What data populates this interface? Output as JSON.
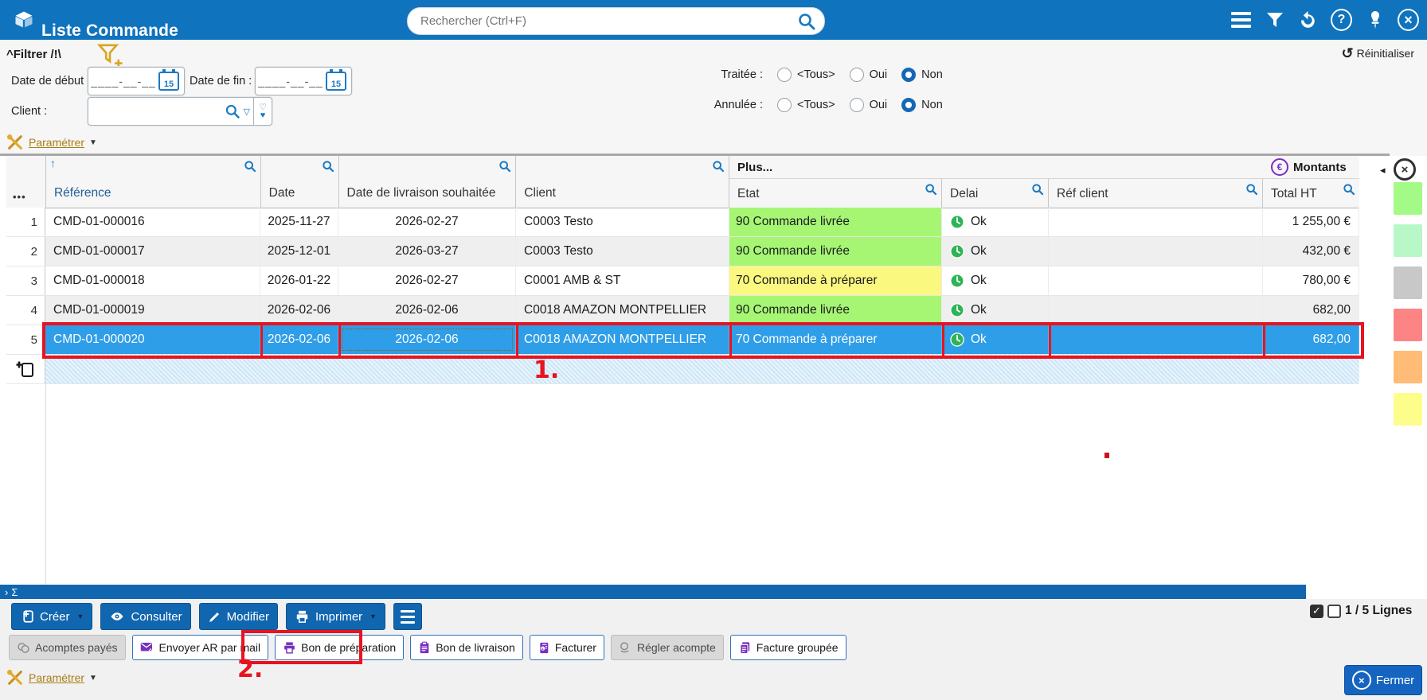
{
  "header": {
    "title": "Liste Commande",
    "search_placeholder": "Rechercher (Ctrl+F)"
  },
  "filter": {
    "collapse_icon": "^",
    "title": "Filtrer /!\\",
    "reset_label": "Réinitialiser",
    "date_start_label": "Date de début :",
    "date_end_label": "Date de fin :",
    "date_placeholder": "____-__-__",
    "calendar_day": "15",
    "client_label": "Client :",
    "traitee_label": "Traitée :",
    "annulee_label": "Annulée :",
    "radio_options": [
      "<Tous>",
      "Oui",
      "Non"
    ],
    "traitee_selected": "Non",
    "annulee_selected": "Non",
    "parametrer_label": "Paramétrer"
  },
  "table": {
    "groups": {
      "plus": "Plus...",
      "montants": "Montants"
    },
    "columns": {
      "reference": "Référence",
      "date": "Date",
      "date_livraison": "Date de livraison souhaitée",
      "client": "Client",
      "etat": "Etat",
      "delai": "Delai",
      "ref_client": "Réf client",
      "total_ht": "Total HT"
    },
    "rows": [
      {
        "num": "1",
        "reference": "CMD-01-000016",
        "date": "2025-11-27",
        "date_livraison": "2026-02-27",
        "client": "C0003 Testo",
        "etat": "90 Commande livrée",
        "etat_color": "#a6f674",
        "delai": "Ok",
        "ref_client": "",
        "total_ht": "1 255,00 €",
        "selected": false
      },
      {
        "num": "2",
        "reference": "CMD-01-000017",
        "date": "2025-12-01",
        "date_livraison": "2026-03-27",
        "client": "C0003 Testo",
        "etat": "90 Commande livrée",
        "etat_color": "#a6f674",
        "delai": "Ok",
        "ref_client": "",
        "total_ht": "432,00 €",
        "selected": false
      },
      {
        "num": "3",
        "reference": "CMD-01-000018",
        "date": "2026-01-22",
        "date_livraison": "2026-02-27",
        "client": "C0001 AMB & ST",
        "etat": "70 Commande à préparer",
        "etat_color": "#fbf880",
        "delai": "Ok",
        "ref_client": "",
        "total_ht": "780,00 €",
        "selected": false
      },
      {
        "num": "4",
        "reference": "CMD-01-000019",
        "date": "2026-02-06",
        "date_livraison": "2026-02-06",
        "client": "C0018 AMAZON MONTPELLIER",
        "etat": "90 Commande livrée",
        "etat_color": "#a6f674",
        "delai": "Ok",
        "ref_client": "",
        "total_ht": "682,00",
        "selected": false
      },
      {
        "num": "5",
        "reference": "CMD-01-000020",
        "date": "2026-02-06",
        "date_livraison": "2026-02-06",
        "client": "C0018 AMAZON MONTPELLIER",
        "etat": "70 Commande à préparer",
        "etat_color": "#fbf880",
        "delai": "Ok",
        "ref_client": "",
        "total_ht": "682,00",
        "selected": true
      }
    ]
  },
  "legend": {
    "colors": [
      "#a4fa86",
      "#b8f8c8",
      "#c8c8c8",
      "#fc8484",
      "#ffbc76",
      "#fdfd8b"
    ]
  },
  "sum_bar": {
    "chevron": "›",
    "sigma": "Σ"
  },
  "footer": {
    "creer": "Créer",
    "consulter": "Consulter",
    "modifier": "Modifier",
    "imprimer": "Imprimer",
    "acomptes": "Acomptes payés",
    "envoyer_ar": "Envoyer AR par mail",
    "bon_preparation": "Bon de préparation",
    "bon_livraison": "Bon de livraison",
    "facturer": "Facturer",
    "regler_acompte": "Régler acompte",
    "facture_groupee": "Facture groupée",
    "lines_label": "1 / 5 Lignes",
    "fermer": "Fermer",
    "parametrer_label": "Paramétrer"
  },
  "annotations": {
    "step1": "1.",
    "step2": "2."
  },
  "icons_text": {
    "sort_asc": "↑",
    "dots": "•••",
    "reset": "↺",
    "check": "✓",
    "dropdown": "▼",
    "dropdown_outline": "▽",
    "heart_top": "♡",
    "heart_bottom": "♥",
    "question": "?",
    "close": "×",
    "euro": "€",
    "collapse_left": "◂"
  },
  "colors": {
    "accent": "#0f73bd",
    "button_blue": "#1166b0",
    "selected_row": "#2f9ee8",
    "purple": "#7a2fc0",
    "gold": "#c79021",
    "annotation_red": "#e8131f",
    "clock_green": "#2eb457"
  }
}
